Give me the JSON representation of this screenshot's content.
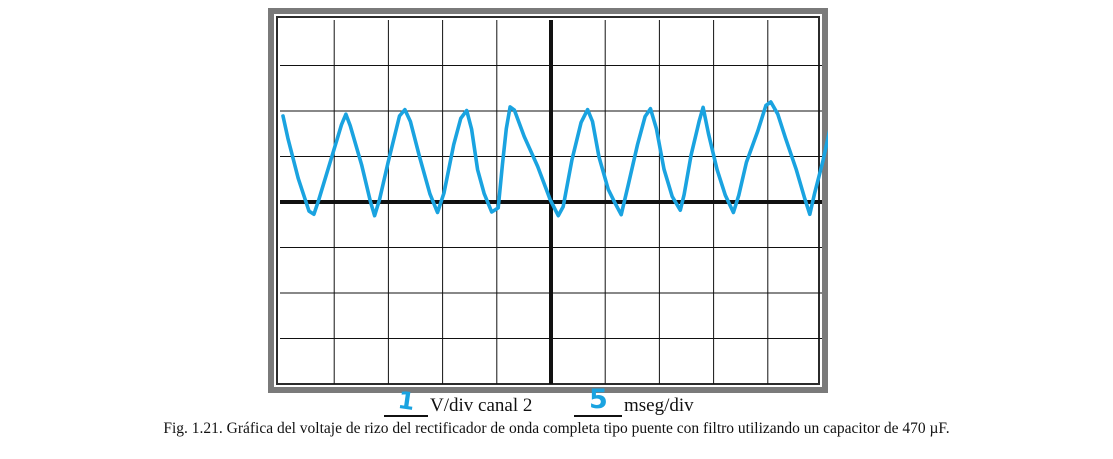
{
  "oscilloscope": {
    "grid": {
      "h_divisions": 10,
      "v_divisions": 8
    },
    "trace_color": "#1aa3e0",
    "frame_color": "#7a7a7a",
    "waveform_points": [
      [
        0.0,
        1.89
      ],
      [
        0.09,
        1.4
      ],
      [
        0.28,
        0.52
      ],
      [
        0.48,
        -0.2
      ],
      [
        0.57,
        -0.27
      ],
      [
        0.66,
        0.05
      ],
      [
        0.91,
        1.03
      ],
      [
        1.08,
        1.7
      ],
      [
        1.16,
        1.93
      ],
      [
        1.24,
        1.68
      ],
      [
        1.45,
        0.82
      ],
      [
        1.61,
        0.02
      ],
      [
        1.69,
        -0.3
      ],
      [
        1.78,
        0.05
      ],
      [
        1.94,
        0.87
      ],
      [
        2.15,
        1.89
      ],
      [
        2.25,
        2.03
      ],
      [
        2.35,
        1.77
      ],
      [
        2.52,
        0.99
      ],
      [
        2.71,
        0.18
      ],
      [
        2.85,
        -0.23
      ],
      [
        2.97,
        0.2
      ],
      [
        3.15,
        1.26
      ],
      [
        3.28,
        1.84
      ],
      [
        3.39,
        2.01
      ],
      [
        3.48,
        1.6
      ],
      [
        3.59,
        0.71
      ],
      [
        3.71,
        0.19
      ],
      [
        3.85,
        -0.22
      ],
      [
        3.97,
        -0.13
      ],
      [
        4.05,
        0.84
      ],
      [
        4.12,
        1.61
      ],
      [
        4.19,
        2.09
      ],
      [
        4.27,
        2.02
      ],
      [
        4.45,
        1.44
      ],
      [
        4.7,
        0.78
      ],
      [
        4.93,
        0.05
      ],
      [
        5.08,
        -0.3
      ],
      [
        5.17,
        -0.1
      ],
      [
        5.33,
        0.92
      ],
      [
        5.5,
        1.75
      ],
      [
        5.62,
        2.03
      ],
      [
        5.71,
        1.77
      ],
      [
        5.83,
        0.99
      ],
      [
        6.0,
        0.28
      ],
      [
        6.13,
        -0.03
      ],
      [
        6.24,
        -0.28
      ],
      [
        6.37,
        0.38
      ],
      [
        6.54,
        1.26
      ],
      [
        6.68,
        1.88
      ],
      [
        6.78,
        2.05
      ],
      [
        6.89,
        1.61
      ],
      [
        7.03,
        0.72
      ],
      [
        7.18,
        0.12
      ],
      [
        7.33,
        -0.18
      ],
      [
        7.4,
        0.16
      ],
      [
        7.53,
        1.03
      ],
      [
        7.68,
        1.79
      ],
      [
        7.75,
        2.08
      ],
      [
        7.85,
        1.5
      ],
      [
        8.01,
        0.71
      ],
      [
        8.16,
        0.15
      ],
      [
        8.31,
        -0.23
      ],
      [
        8.41,
        0.15
      ],
      [
        8.55,
        0.87
      ],
      [
        8.76,
        1.56
      ],
      [
        8.91,
        2.12
      ],
      [
        9.0,
        2.2
      ],
      [
        9.13,
        1.93
      ],
      [
        9.27,
        1.41
      ],
      [
        9.47,
        0.71
      ],
      [
        9.62,
        0.1
      ],
      [
        9.72,
        -0.27
      ],
      [
        9.81,
        0.2
      ],
      [
        9.96,
        0.89
      ],
      [
        10.11,
        1.71
      ],
      [
        10.21,
        2.2
      ],
      [
        10.31,
        2.28
      ],
      [
        10.4,
        1.89
      ],
      [
        10.49,
        1.55
      ]
    ]
  },
  "scale": {
    "volts_per_div_value": "1",
    "volts_per_div_label": "V/div canal 2",
    "time_per_div_value": "5",
    "time_per_div_label": "mseg/div"
  },
  "caption": "Fig. 1.21. Gráfica del voltaje de rizo del rectificador de onda completa tipo puente con filtro utilizando un capacitor de 470 µF."
}
